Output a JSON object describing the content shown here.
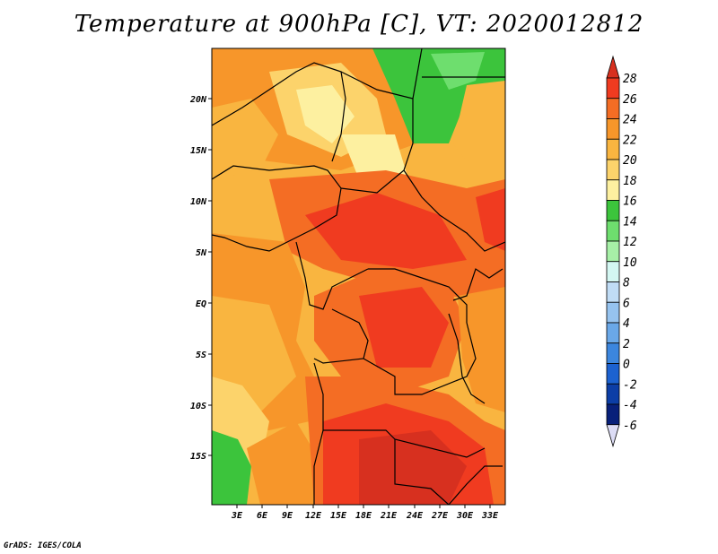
{
  "title": "Temperature at 900hPa [C], VT: 2020012812",
  "credit": "GrADS: IGES/COLA",
  "map": {
    "lat_labels": [
      "20N",
      "15N",
      "10N",
      "5N",
      "EQ",
      "5S",
      "10S",
      "15S"
    ],
    "lon_labels": [
      "3E",
      "6E",
      "9E",
      "12E",
      "15E",
      "18E",
      "21E",
      "24E",
      "27E",
      "30E",
      "33E"
    ]
  },
  "colorbar": {
    "labels": [
      "28",
      "26",
      "24",
      "22",
      "20",
      "18",
      "16",
      "14",
      "12",
      "10",
      "8",
      "6",
      "4",
      "2",
      "0",
      "-2",
      "-4",
      "-6"
    ],
    "colors": [
      "#d7301f",
      "#f03b20",
      "#f46d24",
      "#f7962a",
      "#f9b540",
      "#fcd36b",
      "#fdf0a0",
      "#3cc43c",
      "#6ede6e",
      "#a7f0a7",
      "#d4f7f2",
      "#c0dcf5",
      "#96c3ef",
      "#6aa8e8",
      "#3c86de",
      "#1c62d0",
      "#0c3ea6",
      "#08207a",
      "#dcdcf5"
    ]
  }
}
